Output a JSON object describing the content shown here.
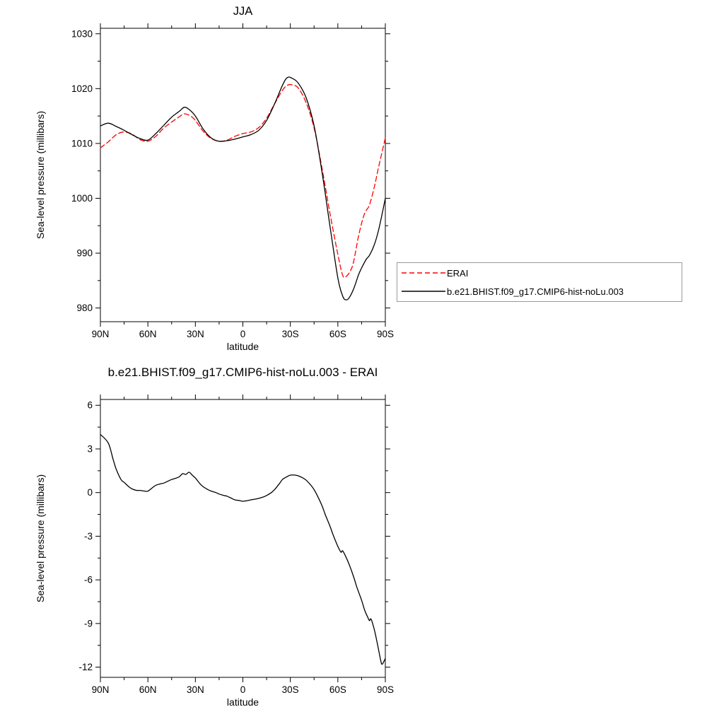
{
  "figure": {
    "background": "#ffffff",
    "text_color": "#000000"
  },
  "chart_data": [
    {
      "type": "line",
      "title": "JJA",
      "xlabel": "latitude",
      "ylabel": "Sea-level pressure (millibars)",
      "xlim": [
        90,
        -90
      ],
      "ylim": [
        977.5,
        1031
      ],
      "grid": false,
      "xticks": {
        "values": [
          90,
          60,
          30,
          0,
          -30,
          -60,
          -90
        ],
        "labels": [
          "90N",
          "60N",
          "30N",
          "0",
          "30S",
          "60S",
          "90S"
        ]
      },
      "xminor": [
        75,
        45,
        15,
        -15,
        -45,
        -75
      ],
      "yticks": {
        "values": [
          980,
          990,
          1000,
          1010,
          1020,
          1030
        ],
        "labels": [
          "980",
          "990",
          "1000",
          "1010",
          "1020",
          "1030"
        ]
      },
      "yminor": [
        985,
        995,
        1005,
        1015,
        1025
      ],
      "legend_position": "outside-right-bottom",
      "series": [
        {
          "name": "ERAI",
          "color": "#ff0000",
          "dash": "7,4",
          "points": [
            [
              90,
              1009.2
            ],
            [
              85,
              1010.3
            ],
            [
              80,
              1011.6
            ],
            [
              75,
              1012.1
            ],
            [
              70,
              1011.7
            ],
            [
              65,
              1010.7
            ],
            [
              60,
              1010.4
            ],
            [
              55,
              1011.3
            ],
            [
              50,
              1012.8
            ],
            [
              45,
              1013.9
            ],
            [
              40,
              1014.9
            ],
            [
              37,
              1015.4
            ],
            [
              33,
              1015.0
            ],
            [
              30,
              1014.2
            ],
            [
              25,
              1012.2
            ],
            [
              20,
              1010.9
            ],
            [
              15,
              1010.4
            ],
            [
              10,
              1010.6
            ],
            [
              5,
              1011.3
            ],
            [
              0,
              1011.8
            ],
            [
              -5,
              1012.1
            ],
            [
              -10,
              1012.9
            ],
            [
              -15,
              1014.6
            ],
            [
              -20,
              1017.2
            ],
            [
              -25,
              1019.7
            ],
            [
              -28,
              1020.6
            ],
            [
              -31,
              1020.7
            ],
            [
              -35,
              1020.1
            ],
            [
              -40,
              1017.4
            ],
            [
              -45,
              1012.8
            ],
            [
              -50,
              1005.5
            ],
            [
              -55,
              997.3
            ],
            [
              -60,
              989.8
            ],
            [
              -63,
              986.0
            ],
            [
              -65,
              985.7
            ],
            [
              -68,
              986.8
            ],
            [
              -70,
              988.5
            ],
            [
              -73,
              993.0
            ],
            [
              -76,
              996.5
            ],
            [
              -78,
              997.8
            ],
            [
              -80,
              998.8
            ],
            [
              -83,
              1002.0
            ],
            [
              -86,
              1006.0
            ],
            [
              -90,
              1011.0
            ]
          ]
        },
        {
          "name": "b.e21.BHIST.f09_g17.CMIP6-hist-noLu.003",
          "color": "#000000",
          "dash": "",
          "points": [
            [
              90,
              1013.2
            ],
            [
              85,
              1013.7
            ],
            [
              80,
              1013.1
            ],
            [
              75,
              1012.4
            ],
            [
              70,
              1011.6
            ],
            [
              65,
              1010.9
            ],
            [
              60,
              1010.6
            ],
            [
              55,
              1011.8
            ],
            [
              50,
              1013.3
            ],
            [
              45,
              1014.8
            ],
            [
              40,
              1015.9
            ],
            [
              37,
              1016.6
            ],
            [
              34,
              1016.2
            ],
            [
              30,
              1015.0
            ],
            [
              25,
              1012.6
            ],
            [
              20,
              1011.0
            ],
            [
              15,
              1010.4
            ],
            [
              10,
              1010.5
            ],
            [
              5,
              1010.8
            ],
            [
              0,
              1011.2
            ],
            [
              -5,
              1011.6
            ],
            [
              -10,
              1012.4
            ],
            [
              -15,
              1014.2
            ],
            [
              -20,
              1017.2
            ],
            [
              -25,
              1020.6
            ],
            [
              -28,
              1022.0
            ],
            [
              -31,
              1021.9
            ],
            [
              -35,
              1021.0
            ],
            [
              -40,
              1018.3
            ],
            [
              -45,
              1013.2
            ],
            [
              -50,
              1004.8
            ],
            [
              -55,
              995.0
            ],
            [
              -60,
              985.5
            ],
            [
              -63,
              982.2
            ],
            [
              -65,
              981.5
            ],
            [
              -67,
              981.8
            ],
            [
              -70,
              983.5
            ],
            [
              -73,
              986.0
            ],
            [
              -75,
              987.3
            ],
            [
              -78,
              988.9
            ],
            [
              -80,
              989.6
            ],
            [
              -83,
              991.5
            ],
            [
              -86,
              994.5
            ],
            [
              -90,
              1000.0
            ]
          ]
        }
      ]
    },
    {
      "type": "line",
      "title": "b.e21.BHIST.f09_g17.CMIP6-hist-noLu.003 - ERAI",
      "xlabel": "latitude",
      "ylabel": "Sea-level pressure (millibars)",
      "xlim": [
        90,
        -90
      ],
      "ylim": [
        -12.7,
        6.4
      ],
      "grid": false,
      "xticks": {
        "values": [
          90,
          60,
          30,
          0,
          -30,
          -60,
          -90
        ],
        "labels": [
          "90N",
          "60N",
          "30N",
          "0",
          "30S",
          "60S",
          "90S"
        ]
      },
      "xminor": [
        75,
        45,
        15,
        -15,
        -45,
        -75
      ],
      "yticks": {
        "values": [
          -12,
          -9,
          -6,
          -3,
          0,
          3,
          6
        ],
        "labels": [
          "-12",
          "-9",
          "-6",
          "-3",
          "0",
          "3",
          "6"
        ]
      },
      "yminor": [
        -10.5,
        -7.5,
        -4.5,
        -1.5,
        1.5,
        4.5
      ],
      "legend_position": "none",
      "series": [
        {
          "name": "b.e21.BHIST.f09_g17.CMIP6-hist-noLu.003 - ERAI",
          "color": "#000000",
          "dash": "",
          "points": [
            [
              90,
              4.0
            ],
            [
              85,
              3.4
            ],
            [
              82,
              2.3
            ],
            [
              80,
              1.6
            ],
            [
              77,
              0.9
            ],
            [
              75,
              0.7
            ],
            [
              72,
              0.4
            ],
            [
              70,
              0.25
            ],
            [
              67,
              0.15
            ],
            [
              65,
              0.15
            ],
            [
              62,
              0.1
            ],
            [
              60,
              0.1
            ],
            [
              57,
              0.35
            ],
            [
              55,
              0.5
            ],
            [
              52,
              0.6
            ],
            [
              50,
              0.65
            ],
            [
              47,
              0.8
            ],
            [
              45,
              0.9
            ],
            [
              42,
              1.0
            ],
            [
              40,
              1.1
            ],
            [
              38,
              1.3
            ],
            [
              36,
              1.25
            ],
            [
              34,
              1.4
            ],
            [
              32,
              1.2
            ],
            [
              30,
              1.0
            ],
            [
              27,
              0.6
            ],
            [
              25,
              0.4
            ],
            [
              22,
              0.2
            ],
            [
              20,
              0.1
            ],
            [
              17,
              0.0
            ],
            [
              15,
              -0.1
            ],
            [
              12,
              -0.2
            ],
            [
              10,
              -0.25
            ],
            [
              7,
              -0.4
            ],
            [
              5,
              -0.5
            ],
            [
              2,
              -0.55
            ],
            [
              0,
              -0.6
            ],
            [
              -3,
              -0.55
            ],
            [
              -5,
              -0.5
            ],
            [
              -8,
              -0.45
            ],
            [
              -10,
              -0.4
            ],
            [
              -13,
              -0.3
            ],
            [
              -15,
              -0.2
            ],
            [
              -18,
              0.0
            ],
            [
              -20,
              0.2
            ],
            [
              -23,
              0.6
            ],
            [
              -25,
              0.9
            ],
            [
              -28,
              1.1
            ],
            [
              -30,
              1.2
            ],
            [
              -33,
              1.2
            ],
            [
              -35,
              1.15
            ],
            [
              -38,
              1.0
            ],
            [
              -40,
              0.85
            ],
            [
              -43,
              0.5
            ],
            [
              -45,
              0.2
            ],
            [
              -47,
              -0.2
            ],
            [
              -50,
              -0.9
            ],
            [
              -52,
              -1.5
            ],
            [
              -55,
              -2.3
            ],
            [
              -57,
              -2.9
            ],
            [
              -60,
              -3.7
            ],
            [
              -62,
              -4.1
            ],
            [
              -63,
              -4.0
            ],
            [
              -65,
              -4.4
            ],
            [
              -67,
              -4.9
            ],
            [
              -70,
              -5.8
            ],
            [
              -72,
              -6.5
            ],
            [
              -75,
              -7.4
            ],
            [
              -77,
              -8.1
            ],
            [
              -79,
              -8.6
            ],
            [
              -80,
              -8.8
            ],
            [
              -81,
              -8.7
            ],
            [
              -83,
              -9.4
            ],
            [
              -85,
              -10.4
            ],
            [
              -87,
              -11.5
            ],
            [
              -88,
              -11.8
            ],
            [
              -90,
              -11.4
            ]
          ]
        }
      ]
    }
  ]
}
